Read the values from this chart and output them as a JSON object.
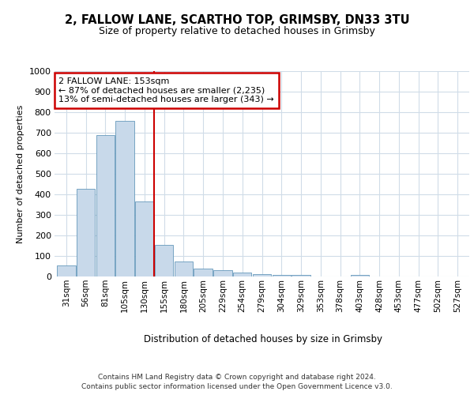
{
  "title1": "2, FALLOW LANE, SCARTHO TOP, GRIMSBY, DN33 3TU",
  "title2": "Size of property relative to detached houses in Grimsby",
  "xlabel": "Distribution of detached houses by size in Grimsby",
  "ylabel": "Number of detached properties",
  "bar_labels": [
    "31sqm",
    "56sqm",
    "81sqm",
    "105sqm",
    "130sqm",
    "155sqm",
    "180sqm",
    "205sqm",
    "229sqm",
    "254sqm",
    "279sqm",
    "304sqm",
    "329sqm",
    "353sqm",
    "378sqm",
    "403sqm",
    "428sqm",
    "453sqm",
    "477sqm",
    "502sqm",
    "527sqm"
  ],
  "bar_values": [
    52,
    425,
    688,
    758,
    365,
    153,
    75,
    40,
    32,
    18,
    12,
    9,
    8,
    0,
    0,
    8,
    0,
    0,
    0,
    0,
    0
  ],
  "bar_color": "#c8d9ea",
  "bar_edge_color": "#6699bb",
  "vline_x": 5,
  "vline_color": "#cc0000",
  "annotation_line1": "2 FALLOW LANE: 153sqm",
  "annotation_line2": "← 87% of detached houses are smaller (2,235)",
  "annotation_line3": "13% of semi-detached houses are larger (343) →",
  "annotation_box_color": "#ffffff",
  "annotation_box_edge": "#cc0000",
  "ylim": [
    0,
    1000
  ],
  "yticks": [
    0,
    100,
    200,
    300,
    400,
    500,
    600,
    700,
    800,
    900,
    1000
  ],
  "grid_color": "#d0dce8",
  "footer1": "Contains HM Land Registry data © Crown copyright and database right 2024.",
  "footer2": "Contains public sector information licensed under the Open Government Licence v3.0."
}
